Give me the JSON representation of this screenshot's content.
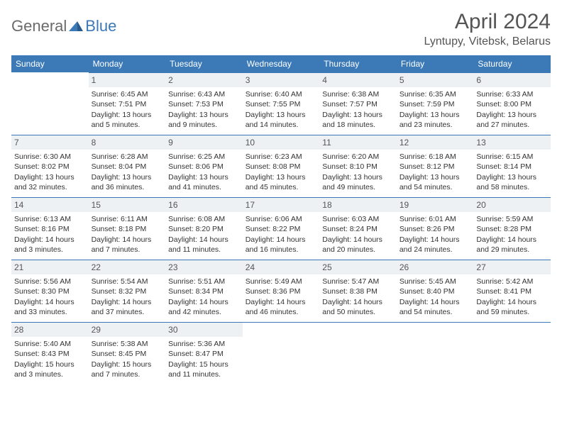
{
  "logo": {
    "general": "General",
    "blue": "Blue"
  },
  "title": "April 2024",
  "location": "Lyntupy, Vitebsk, Belarus",
  "colors": {
    "header_bg": "#3b79b7",
    "header_text": "#ffffff",
    "date_bg": "#eef1f3",
    "border": "#3b79b7",
    "text": "#333333",
    "title_text": "#555555"
  },
  "dayHeaders": [
    "Sunday",
    "Monday",
    "Tuesday",
    "Wednesday",
    "Thursday",
    "Friday",
    "Saturday"
  ],
  "weeks": [
    [
      {
        "date": "",
        "sunrise": "",
        "sunset": "",
        "daylight": ""
      },
      {
        "date": "1",
        "sunrise": "Sunrise: 6:45 AM",
        "sunset": "Sunset: 7:51 PM",
        "daylight": "Daylight: 13 hours and 5 minutes."
      },
      {
        "date": "2",
        "sunrise": "Sunrise: 6:43 AM",
        "sunset": "Sunset: 7:53 PM",
        "daylight": "Daylight: 13 hours and 9 minutes."
      },
      {
        "date": "3",
        "sunrise": "Sunrise: 6:40 AM",
        "sunset": "Sunset: 7:55 PM",
        "daylight": "Daylight: 13 hours and 14 minutes."
      },
      {
        "date": "4",
        "sunrise": "Sunrise: 6:38 AM",
        "sunset": "Sunset: 7:57 PM",
        "daylight": "Daylight: 13 hours and 18 minutes."
      },
      {
        "date": "5",
        "sunrise": "Sunrise: 6:35 AM",
        "sunset": "Sunset: 7:59 PM",
        "daylight": "Daylight: 13 hours and 23 minutes."
      },
      {
        "date": "6",
        "sunrise": "Sunrise: 6:33 AM",
        "sunset": "Sunset: 8:00 PM",
        "daylight": "Daylight: 13 hours and 27 minutes."
      }
    ],
    [
      {
        "date": "7",
        "sunrise": "Sunrise: 6:30 AM",
        "sunset": "Sunset: 8:02 PM",
        "daylight": "Daylight: 13 hours and 32 minutes."
      },
      {
        "date": "8",
        "sunrise": "Sunrise: 6:28 AM",
        "sunset": "Sunset: 8:04 PM",
        "daylight": "Daylight: 13 hours and 36 minutes."
      },
      {
        "date": "9",
        "sunrise": "Sunrise: 6:25 AM",
        "sunset": "Sunset: 8:06 PM",
        "daylight": "Daylight: 13 hours and 41 minutes."
      },
      {
        "date": "10",
        "sunrise": "Sunrise: 6:23 AM",
        "sunset": "Sunset: 8:08 PM",
        "daylight": "Daylight: 13 hours and 45 minutes."
      },
      {
        "date": "11",
        "sunrise": "Sunrise: 6:20 AM",
        "sunset": "Sunset: 8:10 PM",
        "daylight": "Daylight: 13 hours and 49 minutes."
      },
      {
        "date": "12",
        "sunrise": "Sunrise: 6:18 AM",
        "sunset": "Sunset: 8:12 PM",
        "daylight": "Daylight: 13 hours and 54 minutes."
      },
      {
        "date": "13",
        "sunrise": "Sunrise: 6:15 AM",
        "sunset": "Sunset: 8:14 PM",
        "daylight": "Daylight: 13 hours and 58 minutes."
      }
    ],
    [
      {
        "date": "14",
        "sunrise": "Sunrise: 6:13 AM",
        "sunset": "Sunset: 8:16 PM",
        "daylight": "Daylight: 14 hours and 3 minutes."
      },
      {
        "date": "15",
        "sunrise": "Sunrise: 6:11 AM",
        "sunset": "Sunset: 8:18 PM",
        "daylight": "Daylight: 14 hours and 7 minutes."
      },
      {
        "date": "16",
        "sunrise": "Sunrise: 6:08 AM",
        "sunset": "Sunset: 8:20 PM",
        "daylight": "Daylight: 14 hours and 11 minutes."
      },
      {
        "date": "17",
        "sunrise": "Sunrise: 6:06 AM",
        "sunset": "Sunset: 8:22 PM",
        "daylight": "Daylight: 14 hours and 16 minutes."
      },
      {
        "date": "18",
        "sunrise": "Sunrise: 6:03 AM",
        "sunset": "Sunset: 8:24 PM",
        "daylight": "Daylight: 14 hours and 20 minutes."
      },
      {
        "date": "19",
        "sunrise": "Sunrise: 6:01 AM",
        "sunset": "Sunset: 8:26 PM",
        "daylight": "Daylight: 14 hours and 24 minutes."
      },
      {
        "date": "20",
        "sunrise": "Sunrise: 5:59 AM",
        "sunset": "Sunset: 8:28 PM",
        "daylight": "Daylight: 14 hours and 29 minutes."
      }
    ],
    [
      {
        "date": "21",
        "sunrise": "Sunrise: 5:56 AM",
        "sunset": "Sunset: 8:30 PM",
        "daylight": "Daylight: 14 hours and 33 minutes."
      },
      {
        "date": "22",
        "sunrise": "Sunrise: 5:54 AM",
        "sunset": "Sunset: 8:32 PM",
        "daylight": "Daylight: 14 hours and 37 minutes."
      },
      {
        "date": "23",
        "sunrise": "Sunrise: 5:51 AM",
        "sunset": "Sunset: 8:34 PM",
        "daylight": "Daylight: 14 hours and 42 minutes."
      },
      {
        "date": "24",
        "sunrise": "Sunrise: 5:49 AM",
        "sunset": "Sunset: 8:36 PM",
        "daylight": "Daylight: 14 hours and 46 minutes."
      },
      {
        "date": "25",
        "sunrise": "Sunrise: 5:47 AM",
        "sunset": "Sunset: 8:38 PM",
        "daylight": "Daylight: 14 hours and 50 minutes."
      },
      {
        "date": "26",
        "sunrise": "Sunrise: 5:45 AM",
        "sunset": "Sunset: 8:40 PM",
        "daylight": "Daylight: 14 hours and 54 minutes."
      },
      {
        "date": "27",
        "sunrise": "Sunrise: 5:42 AM",
        "sunset": "Sunset: 8:41 PM",
        "daylight": "Daylight: 14 hours and 59 minutes."
      }
    ],
    [
      {
        "date": "28",
        "sunrise": "Sunrise: 5:40 AM",
        "sunset": "Sunset: 8:43 PM",
        "daylight": "Daylight: 15 hours and 3 minutes."
      },
      {
        "date": "29",
        "sunrise": "Sunrise: 5:38 AM",
        "sunset": "Sunset: 8:45 PM",
        "daylight": "Daylight: 15 hours and 7 minutes."
      },
      {
        "date": "30",
        "sunrise": "Sunrise: 5:36 AM",
        "sunset": "Sunset: 8:47 PM",
        "daylight": "Daylight: 15 hours and 11 minutes."
      },
      {
        "date": "",
        "sunrise": "",
        "sunset": "",
        "daylight": ""
      },
      {
        "date": "",
        "sunrise": "",
        "sunset": "",
        "daylight": ""
      },
      {
        "date": "",
        "sunrise": "",
        "sunset": "",
        "daylight": ""
      },
      {
        "date": "",
        "sunrise": "",
        "sunset": "",
        "daylight": ""
      }
    ]
  ]
}
